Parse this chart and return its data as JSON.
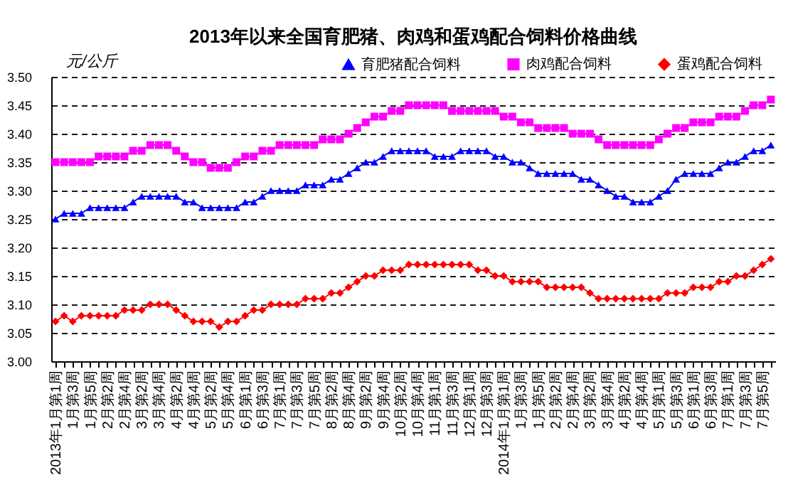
{
  "chart_data": {
    "type": "line",
    "title": "2013年以来全国育肥猪、肉鸡和蛋鸡配合饲料价格曲线",
    "ylabel": "元/公斤",
    "categories": [
      "2013年1月第1周",
      null,
      "1月第3周",
      null,
      "1月第5周",
      null,
      "2月第2周",
      null,
      "2月第4周",
      null,
      "3月第2周",
      null,
      "3月第4周",
      null,
      "4月第2周",
      null,
      "4月第4周",
      null,
      "5月第2周",
      null,
      "5月第4周",
      null,
      "6月第1周",
      null,
      "6月第3周",
      null,
      "7月第1周",
      null,
      "7月第3周",
      null,
      "7月第5周",
      null,
      "8月第2周",
      null,
      "8月第4周",
      null,
      "9月第2周",
      null,
      "9月第4周",
      null,
      "10月第2周",
      null,
      "10月第4周",
      null,
      "11月第1周",
      null,
      "11月第3周",
      null,
      "12月第1周",
      null,
      "12月第3周",
      null,
      "2014年1月第1周",
      null,
      "1月第3周",
      null,
      "1月第5周",
      null,
      "2月第2周",
      null,
      "2月第4周",
      null,
      "3月第2周",
      null,
      "3月第4周",
      null,
      "4月第2周",
      null,
      "4月第4周",
      null,
      "5月第1周",
      null,
      "5月第3周",
      null,
      "6月第1周",
      null,
      "6月第3周",
      null,
      "7月第1周",
      null,
      "7月第3周",
      null,
      "7月第5周",
      null
    ],
    "series": [
      {
        "name": "育肥猪配合饲料",
        "color": "#0000ff",
        "marker": "triangle",
        "values": [
          3.25,
          3.26,
          3.26,
          3.26,
          3.27,
          3.27,
          3.27,
          3.27,
          3.27,
          3.28,
          3.29,
          3.29,
          3.29,
          3.29,
          3.29,
          3.28,
          3.28,
          3.27,
          3.27,
          3.27,
          3.27,
          3.27,
          3.28,
          3.28,
          3.29,
          3.3,
          3.3,
          3.3,
          3.3,
          3.31,
          3.31,
          3.31,
          3.32,
          3.32,
          3.33,
          3.34,
          3.35,
          3.35,
          3.36,
          3.37,
          3.37,
          3.37,
          3.37,
          3.37,
          3.36,
          3.36,
          3.36,
          3.37,
          3.37,
          3.37,
          3.37,
          3.36,
          3.36,
          3.35,
          3.35,
          3.34,
          3.33,
          3.33,
          3.33,
          3.33,
          3.33,
          3.32,
          3.32,
          3.31,
          3.3,
          3.29,
          3.29,
          3.28,
          3.28,
          3.28,
          3.29,
          3.3,
          3.32,
          3.33,
          3.33,
          3.33,
          3.33,
          3.34,
          3.35,
          3.35,
          3.36,
          3.37,
          3.37,
          3.38
        ]
      },
      {
        "name": "肉鸡配合饲料",
        "color": "#ff00ff",
        "marker": "square",
        "values": [
          3.35,
          3.35,
          3.35,
          3.35,
          3.35,
          3.36,
          3.36,
          3.36,
          3.36,
          3.37,
          3.37,
          3.38,
          3.38,
          3.38,
          3.37,
          3.36,
          3.35,
          3.35,
          3.34,
          3.34,
          3.34,
          3.35,
          3.36,
          3.36,
          3.37,
          3.37,
          3.38,
          3.38,
          3.38,
          3.38,
          3.38,
          3.39,
          3.39,
          3.39,
          3.4,
          3.41,
          3.42,
          3.43,
          3.43,
          3.44,
          3.44,
          3.45,
          3.45,
          3.45,
          3.45,
          3.45,
          3.44,
          3.44,
          3.44,
          3.44,
          3.44,
          3.44,
          3.43,
          3.43,
          3.42,
          3.42,
          3.41,
          3.41,
          3.41,
          3.41,
          3.4,
          3.4,
          3.4,
          3.39,
          3.38,
          3.38,
          3.38,
          3.38,
          3.38,
          3.38,
          3.39,
          3.4,
          3.41,
          3.41,
          3.42,
          3.42,
          3.42,
          3.43,
          3.43,
          3.43,
          3.44,
          3.45,
          3.45,
          3.46
        ]
      },
      {
        "name": "蛋鸡配合饲料",
        "color": "#ff0000",
        "marker": "diamond",
        "values": [
          3.07,
          3.08,
          3.07,
          3.08,
          3.08,
          3.08,
          3.08,
          3.08,
          3.09,
          3.09,
          3.09,
          3.1,
          3.1,
          3.1,
          3.09,
          3.08,
          3.07,
          3.07,
          3.07,
          3.06,
          3.07,
          3.07,
          3.08,
          3.09,
          3.09,
          3.1,
          3.1,
          3.1,
          3.1,
          3.11,
          3.11,
          3.11,
          3.12,
          3.12,
          3.13,
          3.14,
          3.15,
          3.15,
          3.16,
          3.16,
          3.16,
          3.17,
          3.17,
          3.17,
          3.17,
          3.17,
          3.17,
          3.17,
          3.17,
          3.16,
          3.16,
          3.15,
          3.15,
          3.14,
          3.14,
          3.14,
          3.14,
          3.13,
          3.13,
          3.13,
          3.13,
          3.13,
          3.12,
          3.11,
          3.11,
          3.11,
          3.11,
          3.11,
          3.11,
          3.11,
          3.11,
          3.12,
          3.12,
          3.12,
          3.13,
          3.13,
          3.13,
          3.14,
          3.14,
          3.15,
          3.15,
          3.16,
          3.17,
          3.18
        ]
      }
    ],
    "ylim": [
      3.0,
      3.5
    ],
    "yticks": [
      {
        "value": 3.0,
        "label": "3.00"
      },
      {
        "value": 3.05,
        "label": "3.05"
      },
      {
        "value": 3.1,
        "label": "3.10"
      },
      {
        "value": 3.15,
        "label": "3.15"
      },
      {
        "value": 3.2,
        "label": "3.20"
      },
      {
        "value": 3.25,
        "label": "3.25"
      },
      {
        "value": 3.3,
        "label": "3.30"
      },
      {
        "value": 3.35,
        "label": "3.35"
      },
      {
        "value": 3.4,
        "label": "3.40"
      },
      {
        "value": 3.45,
        "label": "3.45"
      },
      {
        "value": 3.5,
        "label": "3.50"
      }
    ],
    "grid": "y",
    "legend": "top right"
  }
}
